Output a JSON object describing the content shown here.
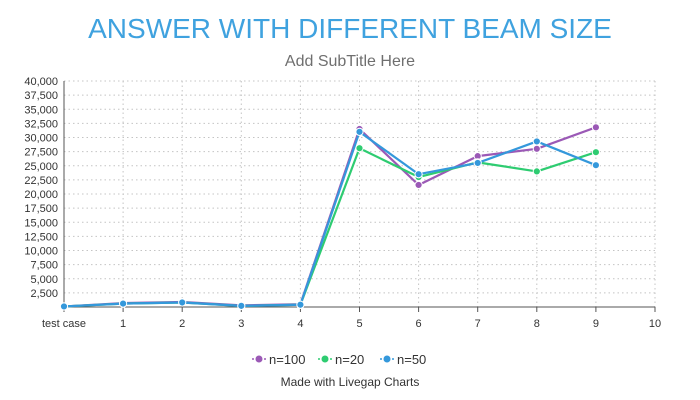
{
  "chart_data": {
    "type": "line",
    "title": "ANSWER WITH DIFFERENT BEAM SIZE",
    "subtitle": "Add SubTitle Here",
    "xlabel": "",
    "ylabel": "",
    "x_ticks": [
      "test case",
      "1",
      "2",
      "3",
      "4",
      "5",
      "6",
      "7",
      "8",
      "9",
      "10"
    ],
    "y_ticks": [
      "2,500",
      "5,000",
      "7,500",
      "10,000",
      "12,500",
      "15,000",
      "17,500",
      "20,000",
      "22,500",
      "25,000",
      "27,500",
      "30,000",
      "32,500",
      "35,000",
      "37,500",
      "40,000"
    ],
    "xlim": [
      0,
      10
    ],
    "ylim": [
      0,
      40000
    ],
    "grid": true,
    "legend_position": "bottom",
    "x": [
      0,
      1,
      2,
      3,
      4,
      5,
      6,
      7,
      8,
      9
    ],
    "series": [
      {
        "name": "n=100",
        "color": "#9b59b6",
        "values": [
          100,
          700,
          900,
          300,
          500,
          31500,
          21600,
          26700,
          28000,
          31800
        ]
      },
      {
        "name": "n=20",
        "color": "#2ecc71",
        "values": [
          100,
          600,
          800,
          200,
          400,
          28100,
          23000,
          25600,
          24000,
          27400
        ]
      },
      {
        "name": "n=50",
        "color": "#3498db",
        "values": [
          100,
          600,
          800,
          200,
          400,
          31000,
          23500,
          25500,
          29300,
          25100
        ]
      }
    ],
    "credit": "Made with Livegap Charts"
  }
}
